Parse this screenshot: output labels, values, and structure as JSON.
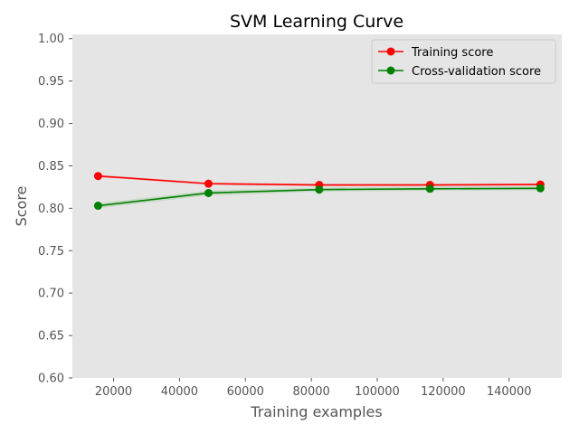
{
  "chart_data": {
    "type": "line",
    "title": "SVM Learning Curve",
    "xlabel": "Training examples",
    "ylabel": "Score",
    "xlim": [
      7500,
      156000
    ],
    "ylim": [
      0.6,
      1.005
    ],
    "x_ticks": [
      20000,
      40000,
      60000,
      80000,
      100000,
      120000,
      140000
    ],
    "x_tick_labels": [
      "20000",
      "40000",
      "60000",
      "80000",
      "100000",
      "120000",
      "140000"
    ],
    "y_ticks": [
      0.6,
      0.65,
      0.7,
      0.75,
      0.8,
      0.85,
      0.9,
      0.95,
      1.0
    ],
    "y_tick_labels": [
      "0.60",
      "0.65",
      "0.70",
      "0.75",
      "0.80",
      "0.85",
      "0.90",
      "0.95",
      "1.00"
    ],
    "grid": false,
    "background": "#e5e5e5",
    "legend_position": "top-right",
    "x": [
      15300,
      48800,
      82400,
      116000,
      149500
    ],
    "series": [
      {
        "name": "Training score",
        "color": "#ff0000",
        "values": [
          0.838,
          0.829,
          0.8275,
          0.8275,
          0.828
        ],
        "band": [
          0.0015,
          0.0015,
          0.0015,
          0.0015,
          0.0015
        ]
      },
      {
        "name": "Cross-validation score",
        "color": "#008000",
        "values": [
          0.803,
          0.818,
          0.822,
          0.823,
          0.8235
        ],
        "band": [
          0.003,
          0.003,
          0.0025,
          0.0025,
          0.0025
        ]
      }
    ]
  }
}
